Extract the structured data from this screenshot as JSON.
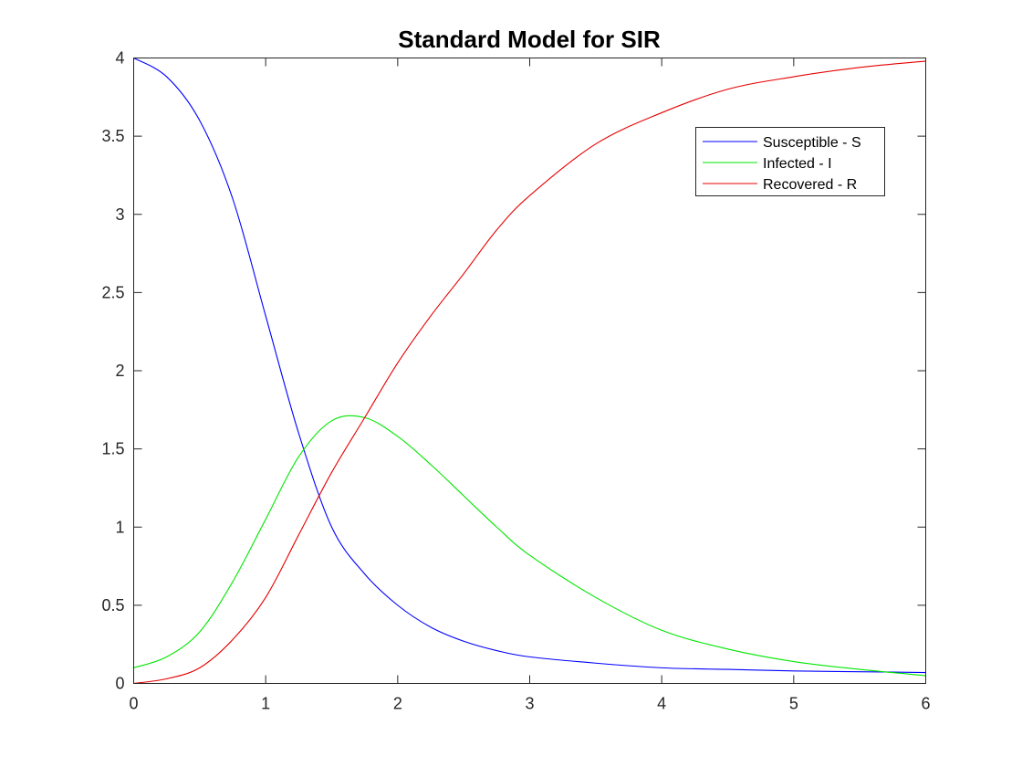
{
  "chart_data": {
    "type": "line",
    "title": "Standard Model for SIR",
    "xlabel": "",
    "ylabel": "",
    "xlim": [
      0,
      6
    ],
    "ylim": [
      0,
      4
    ],
    "xticks": [
      0,
      1,
      2,
      3,
      4,
      5,
      6
    ],
    "yticks": [
      0,
      0.5,
      1,
      1.5,
      2,
      2.5,
      3,
      3.5,
      4
    ],
    "xtick_labels": [
      "0",
      "1",
      "2",
      "3",
      "4",
      "5",
      "6"
    ],
    "ytick_labels": [
      "0",
      "0.5",
      "1",
      "1.5",
      "2",
      "2.5",
      "3",
      "3.5",
      "4"
    ],
    "grid": false,
    "legend_position": "top-right",
    "x": [
      0,
      0.25,
      0.5,
      0.75,
      1,
      1.25,
      1.5,
      1.75,
      2,
      2.25,
      2.5,
      2.75,
      3,
      3.5,
      4,
      4.5,
      5,
      5.5,
      6
    ],
    "series": [
      {
        "name": "Susceptible - S",
        "color": "#0000ff",
        "values": [
          4.0,
          3.88,
          3.6,
          3.1,
          2.35,
          1.6,
          1.0,
          0.7,
          0.5,
          0.36,
          0.27,
          0.21,
          0.17,
          0.13,
          0.1,
          0.09,
          0.08,
          0.075,
          0.07
        ]
      },
      {
        "name": "Infected - I",
        "color": "#00e600",
        "values": [
          0.1,
          0.17,
          0.33,
          0.65,
          1.05,
          1.45,
          1.68,
          1.7,
          1.58,
          1.4,
          1.2,
          1.0,
          0.82,
          0.55,
          0.34,
          0.22,
          0.14,
          0.09,
          0.05
        ]
      },
      {
        "name": "Recovered - R",
        "color": "#e60000",
        "values": [
          0.0,
          0.03,
          0.1,
          0.28,
          0.55,
          0.95,
          1.35,
          1.7,
          2.05,
          2.35,
          2.62,
          2.9,
          3.12,
          3.45,
          3.65,
          3.8,
          3.88,
          3.94,
          3.98
        ]
      }
    ]
  }
}
